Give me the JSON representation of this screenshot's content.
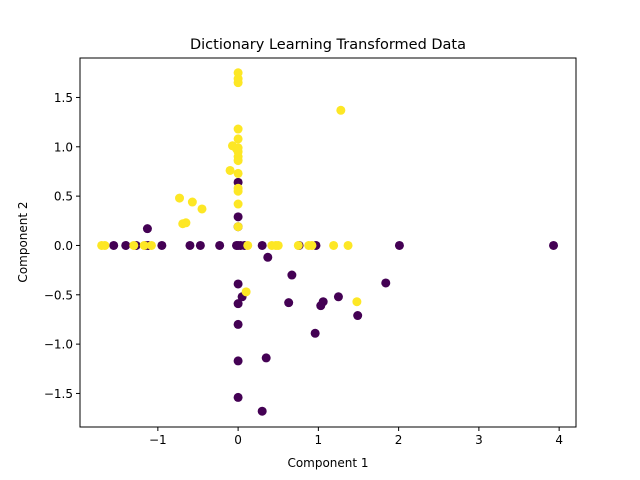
{
  "chart_data": {
    "type": "scatter",
    "title": "Dictionary Learning Transformed Data",
    "xlabel": "Component 1",
    "ylabel": "Component 2",
    "xlim": [
      -1.97,
      4.21
    ],
    "ylim": [
      -1.84,
      1.9
    ],
    "xticks": [
      -1,
      0,
      1,
      2,
      3,
      4
    ],
    "xtick_labels": [
      "−1",
      "0",
      "1",
      "2",
      "3",
      "4"
    ],
    "yticks": [
      -1.5,
      -1.0,
      -0.5,
      0.0,
      0.5,
      1.0,
      1.5
    ],
    "ytick_labels": [
      "−1.5",
      "−1.0",
      "−0.5",
      "0.0",
      "0.5",
      "1.0",
      "1.5"
    ],
    "grid": false,
    "series": [
      {
        "color": "#440154",
        "points": [
          [
            -1.55,
            0.0
          ],
          [
            -1.4,
            0.0
          ],
          [
            -1.27,
            0.0
          ],
          [
            -1.15,
            0.0
          ],
          [
            -1.12,
            0.0
          ],
          [
            -1.13,
            0.17
          ],
          [
            -0.95,
            0.0
          ],
          [
            -0.6,
            0.0
          ],
          [
            -0.47,
            0.0
          ],
          [
            -0.23,
            0.0
          ],
          [
            -0.02,
            0.0
          ],
          [
            0.0,
            0.0
          ],
          [
            0.03,
            0.0
          ],
          [
            0.08,
            0.0
          ],
          [
            0.3,
            0.0
          ],
          [
            0.76,
            0.0
          ],
          [
            0.97,
            0.0
          ],
          [
            0.0,
            0.64
          ],
          [
            0.0,
            0.29
          ],
          [
            0.0,
            0.19
          ],
          [
            0.0,
            -0.39
          ],
          [
            0.0,
            -0.59
          ],
          [
            0.0,
            -0.8
          ],
          [
            0.0,
            -1.17
          ],
          [
            0.0,
            -1.54
          ],
          [
            0.05,
            -0.52
          ],
          [
            0.3,
            -1.68
          ],
          [
            0.35,
            -1.14
          ],
          [
            0.37,
            -0.12
          ],
          [
            0.63,
            -0.58
          ],
          [
            0.67,
            -0.3
          ],
          [
            0.96,
            -0.89
          ],
          [
            1.03,
            -0.61
          ],
          [
            1.06,
            -0.57
          ],
          [
            1.25,
            -0.52
          ],
          [
            1.49,
            -0.71
          ],
          [
            1.84,
            -0.38
          ],
          [
            2.01,
            0.0
          ],
          [
            3.93,
            0.0
          ]
        ]
      },
      {
        "color": "#fde725",
        "points": [
          [
            -1.7,
            0.0
          ],
          [
            -1.66,
            0.0
          ],
          [
            -1.3,
            0.0
          ],
          [
            -1.17,
            0.0
          ],
          [
            -1.08,
            0.0
          ],
          [
            -0.73,
            0.48
          ],
          [
            -0.69,
            0.22
          ],
          [
            -0.65,
            0.23
          ],
          [
            -0.57,
            0.44
          ],
          [
            -0.45,
            0.37
          ],
          [
            -0.1,
            0.76
          ],
          [
            -0.07,
            1.01
          ],
          [
            -0.02,
            0.98
          ],
          [
            0.0,
            1.75
          ],
          [
            0.0,
            1.69
          ],
          [
            0.0,
            1.65
          ],
          [
            0.0,
            1.18
          ],
          [
            0.0,
            1.08
          ],
          [
            0.0,
            0.99
          ],
          [
            0.0,
            0.95
          ],
          [
            0.0,
            0.9
          ],
          [
            0.0,
            0.86
          ],
          [
            0.0,
            0.73
          ],
          [
            0.0,
            0.58
          ],
          [
            0.0,
            0.55
          ],
          [
            0.0,
            0.42
          ],
          [
            0.0,
            0.19
          ],
          [
            0.1,
            -0.47
          ],
          [
            0.12,
            0.0
          ],
          [
            0.42,
            0.0
          ],
          [
            0.47,
            0.0
          ],
          [
            0.5,
            0.0
          ],
          [
            0.75,
            0.0
          ],
          [
            0.88,
            0.0
          ],
          [
            0.92,
            0.0
          ],
          [
            1.19,
            0.0
          ],
          [
            1.37,
            0.0
          ],
          [
            1.28,
            1.37
          ],
          [
            1.48,
            -0.57
          ]
        ]
      }
    ]
  }
}
